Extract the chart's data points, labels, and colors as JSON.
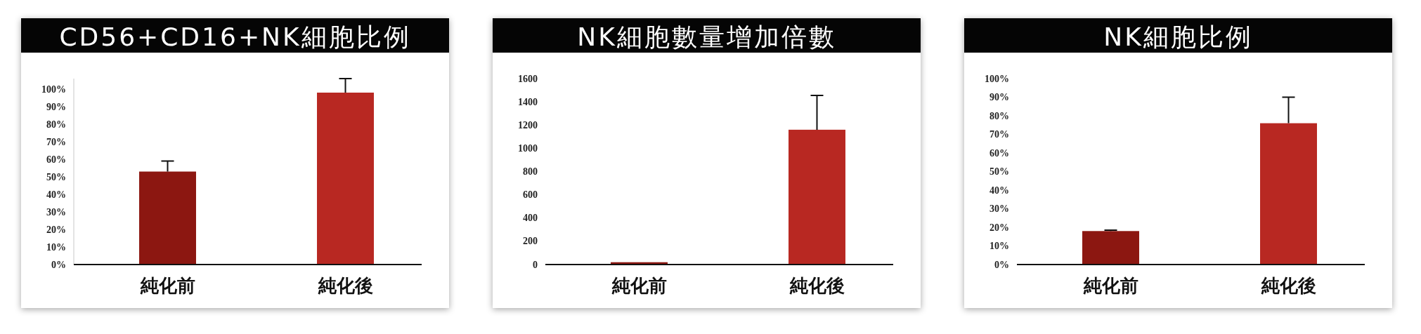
{
  "chart_data": [
    {
      "type": "bar",
      "title": "CD56+CD16+NK細胞比例",
      "categories": [
        "純化前",
        "純化後"
      ],
      "values": [
        53,
        98
      ],
      "colors": [
        "#8c1711",
        "#b82822"
      ],
      "errors": [
        [
          53,
          59
        ],
        [
          98,
          106
        ]
      ],
      "ylim": [
        0,
        106
      ],
      "yticks": [
        {
          "value": 0,
          "label": "0%"
        },
        {
          "value": 10,
          "label": "10%"
        },
        {
          "value": 20,
          "label": "20%"
        },
        {
          "value": 30,
          "label": "30%"
        },
        {
          "value": 40,
          "label": "40%"
        },
        {
          "value": 50,
          "label": "50%"
        },
        {
          "value": 60,
          "label": "60%"
        },
        {
          "value": 70,
          "label": "70%"
        },
        {
          "value": 80,
          "label": "80%"
        },
        {
          "value": 90,
          "label": "90%"
        },
        {
          "value": 100,
          "label": "100%"
        }
      ]
    },
    {
      "type": "bar",
      "title": "NK細胞數量增加倍數",
      "categories": [
        "純化前",
        "純化後"
      ],
      "values": [
        20,
        1160
      ],
      "colors": [
        "#8c1711",
        "#b82822"
      ],
      "errors": [
        null,
        [
          1160,
          1455
        ]
      ],
      "ylim": [
        0,
        1600
      ],
      "yticks": [
        0,
        200,
        400,
        600,
        800,
        1000,
        1200,
        1400,
        1600
      ]
    },
    {
      "type": "bar",
      "title": "NK細胞比例",
      "categories": [
        "純化前",
        "純化後"
      ],
      "values": [
        18,
        76
      ],
      "colors": [
        "#8c1711",
        "#b82822"
      ],
      "errors": [
        [
          18,
          18.5
        ],
        [
          76,
          90
        ]
      ],
      "ylim": [
        0,
        100
      ],
      "yticks": [
        {
          "value": 0,
          "label": "0%"
        },
        {
          "value": 10,
          "label": "10%"
        },
        {
          "value": 20,
          "label": "20%"
        },
        {
          "value": 30,
          "label": "30%"
        },
        {
          "value": 40,
          "label": "40%"
        },
        {
          "value": 50,
          "label": "50%"
        },
        {
          "value": 60,
          "label": "60%"
        },
        {
          "value": 70,
          "label": "70%"
        },
        {
          "value": 80,
          "label": "80%"
        },
        {
          "value": 90,
          "label": "90%"
        },
        {
          "value": 100,
          "label": "100%"
        }
      ]
    }
  ]
}
